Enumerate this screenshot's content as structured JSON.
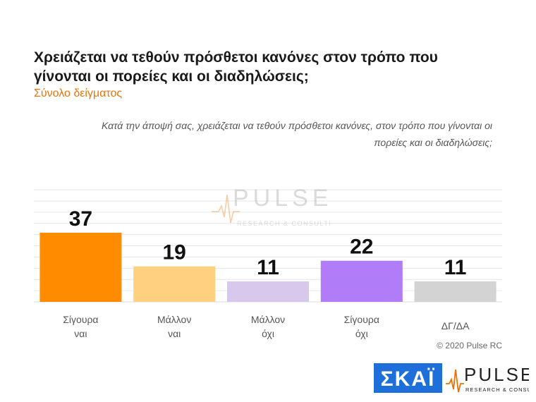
{
  "header": {
    "title": "Χρειάζεται να τεθούν πρόσθετοι κανόνες στον τρόπο που γίνονται οι πορείες και οι διαδηλώσεις;",
    "subtitle": "Σύνολο δείγματος",
    "question": "Κατά την άποψή σας, χρειάζεται να τεθούν πρόσθετοι κανόνες, στον τρόπο που γίνονται οι πορείες και οι διαδηλώσεις;"
  },
  "chart_data": {
    "type": "bar",
    "categories": [
      [
        "Σίγουρα",
        "ναι"
      ],
      [
        "Μάλλον",
        "ναι"
      ],
      [
        "Μάλλον",
        "όχι"
      ],
      [
        "Σίγουρα",
        "όχι"
      ],
      [
        "ΔΓ/ΔΑ"
      ]
    ],
    "values": [
      37,
      19,
      11,
      22,
      11
    ],
    "colors": [
      "#ff8c00",
      "#ffd080",
      "#d8c8ec",
      "#b07cf7",
      "#d3d3d3"
    ],
    "ylim": [
      0,
      60
    ],
    "grid": true
  },
  "footer": {
    "copyright": "© 2020 Pulse RC"
  },
  "logos": {
    "watermark_word": "PULSE",
    "watermark_tagline": "RESEARCH & CONSULTING",
    "skai_word": "ΣΚΑΪ",
    "pulse_word": "PULSE",
    "pulse_tagline": "RESEARCH & CONSULTING",
    "skai_color": "#1e6fd9",
    "pulse_accent": "#e8730a"
  }
}
